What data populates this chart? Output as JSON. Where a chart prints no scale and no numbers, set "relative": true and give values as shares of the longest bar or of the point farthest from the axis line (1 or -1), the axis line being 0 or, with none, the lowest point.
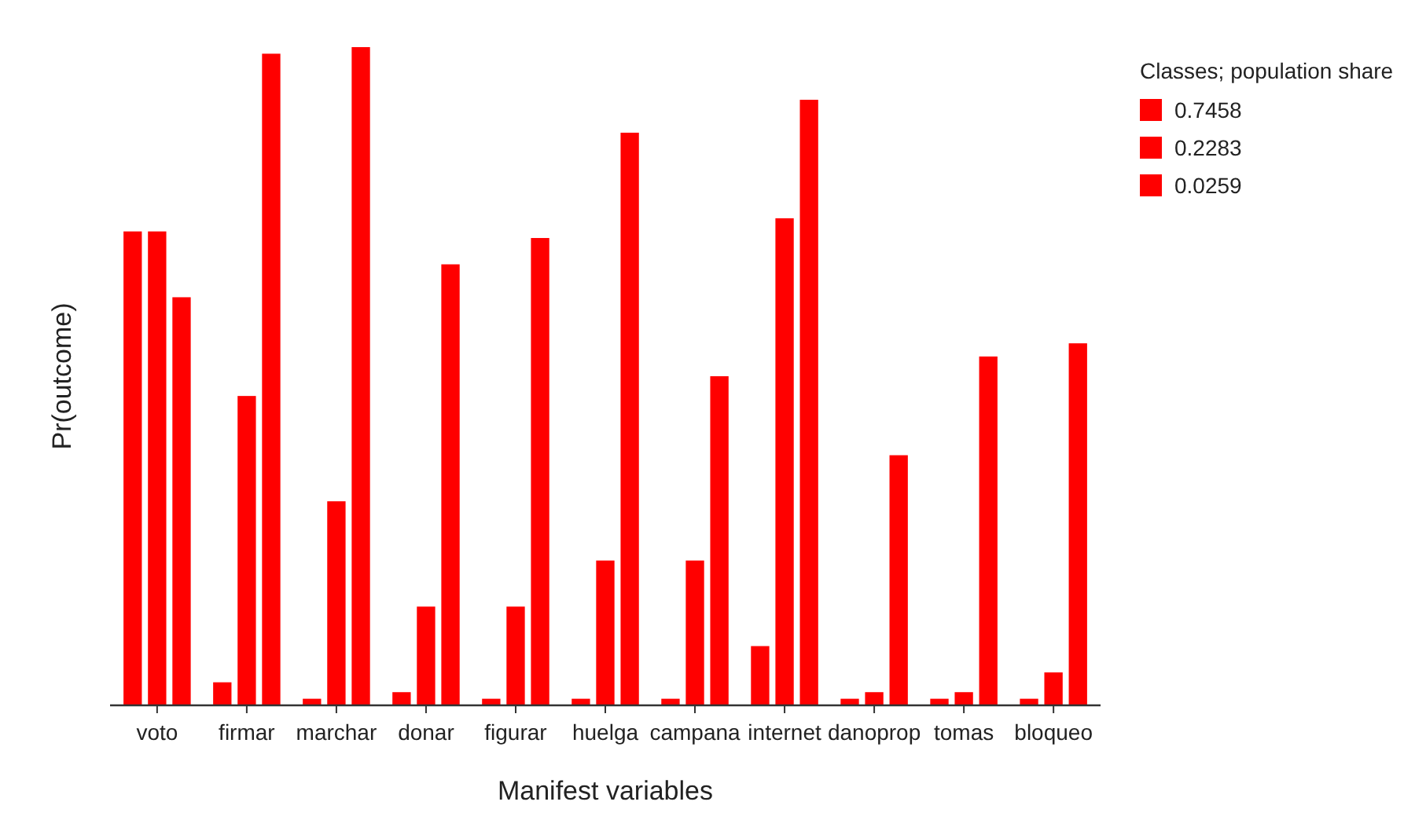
{
  "chart_data": {
    "type": "bar",
    "relative": true,
    "xlabel": "Manifest variables",
    "ylabel": "Pr(outcome)",
    "legend_title": "Classes; population share",
    "legend": "right",
    "categories": [
      "voto",
      "firmar",
      "marchar",
      "donar",
      "figurar",
      "huelga",
      "campana",
      "internet",
      "danoprop",
      "tomas",
      "bloqueo"
    ],
    "series": [
      {
        "name": "0.7458",
        "color": "#ff0000",
        "values": [
          0.72,
          0.035,
          0.01,
          0.02,
          0.01,
          0.01,
          0.01,
          0.09,
          0.01,
          0.01,
          0.01
        ]
      },
      {
        "name": "0.2283",
        "color": "#ff0000",
        "values": [
          0.72,
          0.47,
          0.31,
          0.15,
          0.15,
          0.22,
          0.22,
          0.74,
          0.02,
          0.02,
          0.05
        ]
      },
      {
        "name": "0.0259",
        "color": "#ff0000",
        "values": [
          0.62,
          0.99,
          1,
          0.67,
          0.71,
          0.87,
          0.5,
          0.92,
          0.38,
          0.53,
          0.55
        ]
      }
    ]
  }
}
